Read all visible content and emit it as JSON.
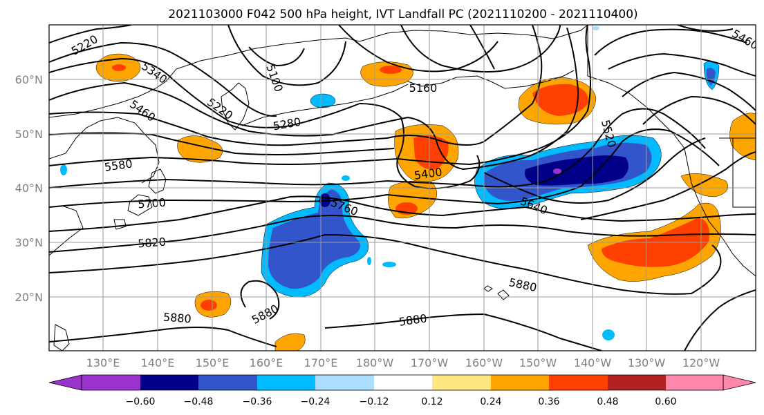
{
  "title": "2021103000 F042 500 hPa height, IVT Landfall PC (2021110200 - 2021110400)",
  "map": {
    "lat_labels": [
      "60°N",
      "50°N",
      "40°N",
      "30°N",
      "20°N"
    ],
    "lon_labels": [
      "130°E",
      "140°E",
      "150°E",
      "160°E",
      "170°E",
      "180°W",
      "170°W",
      "160°W",
      "150°W",
      "140°W",
      "130°W",
      "120°W"
    ],
    "contour_labels": [
      "5220",
      "5340",
      "5460",
      "5580",
      "5700",
      "5820",
      "5220",
      "5280",
      "5400",
      "5160",
      "5520",
      "5640",
      "5760",
      "5880",
      "5880",
      "5880",
      "5880",
      "5460",
      "5100"
    ]
  },
  "colorbar": {
    "ticks": [
      "−0.60",
      "−0.48",
      "−0.36",
      "−0.24",
      "−0.12",
      "0.12",
      "0.24",
      "0.36",
      "0.48",
      "0.60"
    ],
    "colors": [
      "#9933cc",
      "#000088",
      "#3355cc",
      "#00bbff",
      "#aaddff",
      "#ffffff",
      "#ffe680",
      "#ffa500",
      "#ff4000",
      "#b22222",
      "#ff88aa"
    ]
  },
  "colors": {
    "neg1": "#9933cc",
    "neg2": "#000088",
    "neg3": "#3355cc",
    "neg4": "#00bbff",
    "neg5": "#aaddff",
    "pos1": "#ffe680",
    "pos2": "#ffa500",
    "pos3": "#ff4000",
    "pos4": "#b22222",
    "pos5": "#ff88aa"
  }
}
